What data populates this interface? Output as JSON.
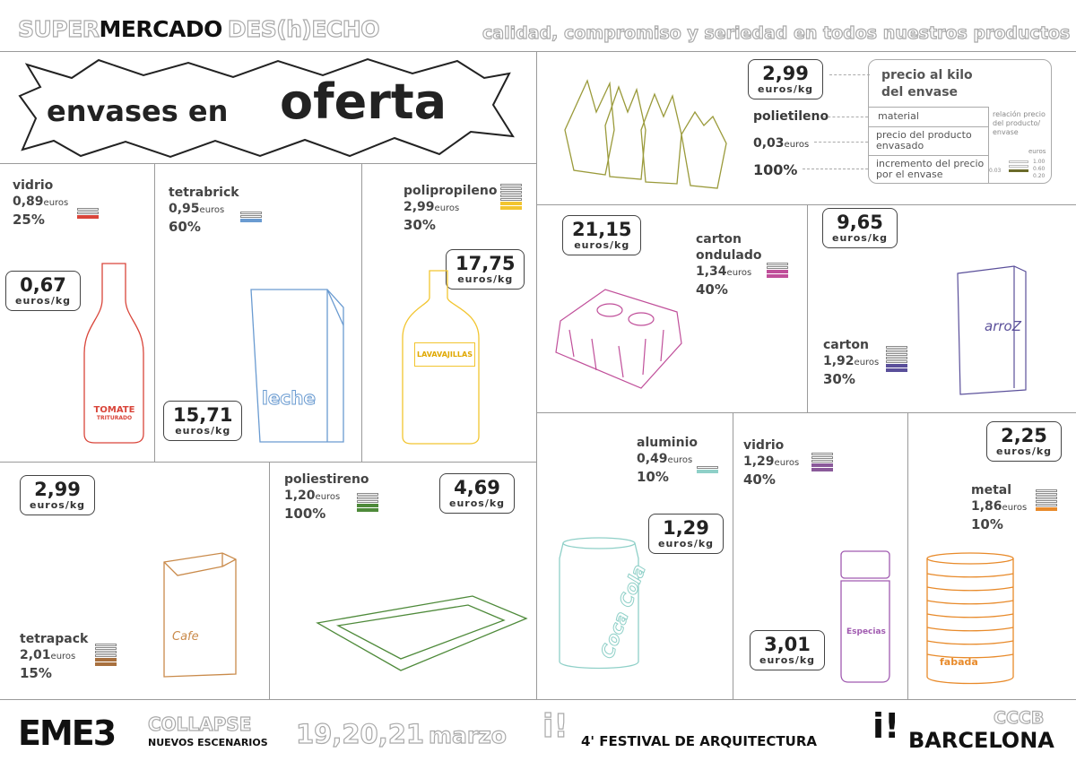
{
  "header": {
    "brand_a": "SUPER",
    "brand_b": "MERCADO",
    "brand_c": "DES(h)ECHO",
    "slogan": "calidad, compromiso y seriedad en todos nuestros productos"
  },
  "title": {
    "a": "envases en",
    "b": "oferta"
  },
  "legend": {
    "tag_price": "2,99",
    "tag_unit": "euros/kg",
    "material": "polietileno",
    "price": "0,03",
    "price_unit": "euros",
    "increment": "100%",
    "box_title": "precio al kilo del envase",
    "row_material": "material",
    "row_price": "precio del producto envasado",
    "row_increment": "incremento del precio por el envase",
    "relation": "relación precio del producto/ envase",
    "scale_unit": "euros",
    "scale": [
      "1.00",
      "0.60",
      "0.20"
    ],
    "scale_value": "0.03"
  },
  "products": [
    {
      "material": "vidrio",
      "price": "0,89",
      "unit": "euros",
      "pct": "25%",
      "kg": "0,67",
      "kg_unit": "euros/kg",
      "label": "TOMATE",
      "sublabel": "TRITURADO",
      "color": "#d9453a"
    },
    {
      "material": "tetrabrick",
      "price": "0,95",
      "unit": "euros",
      "pct": "60%",
      "kg": "15,71",
      "kg_unit": "euros/kg",
      "label": "leche",
      "color": "#6a9bd1"
    },
    {
      "material": "polipropileno",
      "price": "2,99",
      "unit": "euros",
      "pct": "30%",
      "kg": "17,75",
      "kg_unit": "euros/kg",
      "label": "LAVAVAJILLAS",
      "color": "#f2c530"
    },
    {
      "material": "carton ondulado",
      "price": "1,34",
      "unit": "euros",
      "pct": "40%",
      "kg": "21,15",
      "kg_unit": "euros/kg",
      "color": "#c04f9a"
    },
    {
      "material": "carton",
      "price": "1,92",
      "unit": "euros",
      "pct": "30%",
      "kg": "9,65",
      "kg_unit": "euros/kg",
      "label": "arroZ",
      "color": "#5a4f9a"
    },
    {
      "material": "tetrapack",
      "price": "2,01",
      "unit": "euros",
      "pct": "15%",
      "kg": "2,99",
      "kg_unit": "euros/kg",
      "label": "Cafe",
      "color": "#a8703e"
    },
    {
      "material": "poliestireno",
      "price": "1,20",
      "unit": "euros",
      "pct": "100%",
      "kg": "4,69",
      "kg_unit": "euros/kg",
      "color": "#4e8a3a"
    },
    {
      "material": "aluminio",
      "price": "0,49",
      "unit": "euros",
      "pct": "10%",
      "kg": "1,29",
      "kg_unit": "euros/kg",
      "label": "Coca Cola",
      "color": "#8fd0c8"
    },
    {
      "material": "vidrio",
      "price": "1,29",
      "unit": "euros",
      "pct": "40%",
      "kg": "3,01",
      "kg_unit": "euros/kg",
      "label": "Especias",
      "color": "#a05ab0"
    },
    {
      "material": "metal",
      "price": "1,86",
      "unit": "euros",
      "pct": "10%",
      "kg": "2,25",
      "kg_unit": "euros/kg",
      "label": "fabada",
      "color": "#e88a2a"
    }
  ],
  "footer": {
    "eme3": "EME3",
    "collapse": "COLLAPSE",
    "nuevos": "NUEVOS ESCENARIOS",
    "dates": "19,20,21",
    "month": "marzo",
    "mark": "i!",
    "festival": "4' FESTIVAL DE ARQUITECTURA",
    "mark2": "i!",
    "cccb": "CCCB",
    "city": "BARCELONA"
  }
}
